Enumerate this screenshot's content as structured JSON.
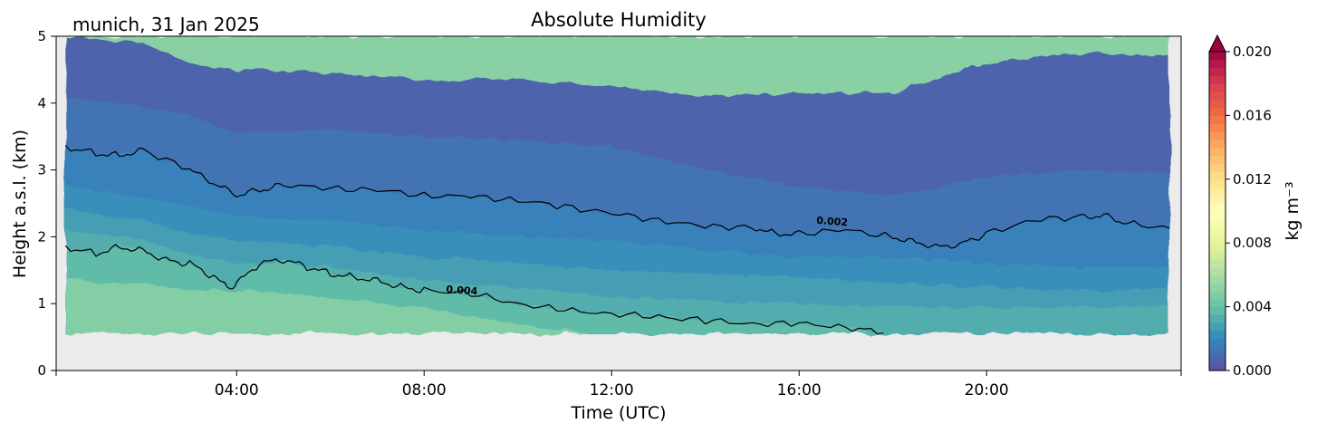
{
  "chart_data": {
    "type": "heatmap",
    "title": "Absolute Humidity",
    "subtitle": "munich, 31 Jan 2025",
    "xlabel": "Time (UTC)",
    "ylabel": "Height a.s.l. (km)",
    "xlim": [
      0.15,
      24.15
    ],
    "ylim": [
      0,
      5
    ],
    "x_ticks": [
      4,
      8,
      12,
      16,
      20
    ],
    "x_tick_labels": [
      "04:00",
      "08:00",
      "12:00",
      "16:00",
      "20:00"
    ],
    "y_ticks": [
      0,
      1,
      2,
      3,
      4,
      5
    ],
    "y_tick_labels": [
      "0",
      "1",
      "2",
      "3",
      "4",
      "5"
    ],
    "data_extent": {
      "time_hours": [
        0.35,
        23.9
      ],
      "height_km": [
        0.55,
        5
      ]
    },
    "colorbar": {
      "label": "kg m⁻³",
      "range": [
        0,
        0.02
      ],
      "ticks": [
        0,
        0.004,
        0.008,
        0.012,
        0.016,
        0.02
      ],
      "tick_labels": [
        "0.000",
        "0.004",
        "0.008",
        "0.012",
        "0.016",
        "0.020"
      ],
      "extend": "max",
      "colormap": "Spectral_r"
    },
    "contour_levels": [
      0.0005,
      0.001,
      0.0015,
      0.002,
      0.0025,
      0.003,
      0.0035,
      0.004,
      0.0045
    ],
    "contour_labels": [
      {
        "text": "0.002",
        "level": 0.002,
        "x": 16.7,
        "y": 2.18
      },
      {
        "text": "0.004",
        "level": 0.004,
        "x": 8.8,
        "y": 1.15
      }
    ],
    "series": [
      {
        "level": 0.001,
        "x": [
          0.35,
          2,
          3,
          4,
          6,
          8,
          10,
          12,
          14,
          16,
          18,
          20,
          22,
          23.9
        ],
        "y": [
          5.0,
          4.9,
          4.6,
          4.5,
          4.45,
          4.35,
          4.35,
          4.25,
          4.1,
          4.15,
          4.15,
          4.6,
          4.75,
          4.7
        ]
      },
      {
        "level": 0.0015,
        "x": [
          0.35,
          2,
          3,
          4,
          6,
          8,
          10,
          12,
          14,
          16,
          18,
          20,
          22,
          23.9
        ],
        "y": [
          4.1,
          3.95,
          3.8,
          3.55,
          3.6,
          3.5,
          3.45,
          3.35,
          3.0,
          2.75,
          2.6,
          2.9,
          3.0,
          2.95
        ]
      },
      {
        "level": 0.002,
        "x": [
          0.35,
          1,
          1.5,
          2,
          3,
          3.5,
          4,
          4.5,
          5,
          6,
          7,
          8,
          9,
          10,
          11,
          12,
          13,
          14,
          15,
          15.5,
          16,
          17,
          18,
          18.5,
          19,
          19.5,
          20,
          21,
          22,
          22.5,
          23,
          23.9
        ],
        "y": [
          3.35,
          3.25,
          3.22,
          3.3,
          3.0,
          2.8,
          2.62,
          2.7,
          2.78,
          2.72,
          2.7,
          2.62,
          2.6,
          2.55,
          2.45,
          2.35,
          2.25,
          2.15,
          2.15,
          2.05,
          2.05,
          2.1,
          2.0,
          1.92,
          1.85,
          1.9,
          2.05,
          2.25,
          2.3,
          2.32,
          2.2,
          2.13
        ]
      },
      {
        "level": 0.0025,
        "x": [
          0.35,
          2,
          3,
          4,
          6,
          8,
          10,
          12,
          14,
          16,
          18,
          20,
          22,
          23.9
        ],
        "y": [
          2.75,
          2.6,
          2.45,
          2.3,
          2.25,
          2.1,
          2.0,
          1.95,
          1.8,
          1.7,
          1.7,
          1.6,
          1.55,
          1.55
        ]
      },
      {
        "level": 0.003,
        "x": [
          0.35,
          2,
          3,
          4,
          6,
          8,
          10,
          12,
          14,
          16,
          18,
          20,
          22,
          23.9
        ],
        "y": [
          2.4,
          2.25,
          2.05,
          1.95,
          1.85,
          1.7,
          1.6,
          1.5,
          1.45,
          1.4,
          1.3,
          1.25,
          1.2,
          1.2
        ]
      },
      {
        "level": 0.0035,
        "x": [
          0.35,
          2,
          3,
          4,
          6,
          8,
          10,
          12,
          14,
          16,
          18,
          20,
          22,
          23.9
        ],
        "y": [
          2.1,
          1.95,
          1.75,
          1.6,
          1.55,
          1.35,
          1.25,
          1.1,
          1.05,
          1.0,
          0.95,
          0.95,
          0.95,
          0.95
        ]
      },
      {
        "level": 0.004,
        "x": [
          0.35,
          1,
          1.5,
          2,
          2.5,
          3,
          3.5,
          3.8,
          4,
          4.5,
          5,
          5.5,
          6,
          6.5,
          7,
          7.5,
          8,
          9,
          10,
          11,
          12,
          13,
          14,
          15,
          16,
          17,
          17.8
        ],
        "y": [
          1.85,
          1.75,
          1.85,
          1.8,
          1.65,
          1.6,
          1.4,
          1.25,
          1.3,
          1.6,
          1.65,
          1.55,
          1.45,
          1.4,
          1.35,
          1.25,
          1.2,
          1.15,
          1.0,
          0.9,
          0.85,
          0.8,
          0.75,
          0.7,
          0.7,
          0.65,
          0.56
        ]
      },
      {
        "level": 0.0045,
        "x": [
          0.35,
          1,
          2,
          3,
          4,
          5,
          6,
          7,
          8,
          9,
          10,
          11,
          11.5
        ],
        "y": [
          1.4,
          1.3,
          1.3,
          1.2,
          1.2,
          1.15,
          1.1,
          1.0,
          0.95,
          0.8,
          0.7,
          0.6,
          0.56
        ]
      }
    ]
  }
}
